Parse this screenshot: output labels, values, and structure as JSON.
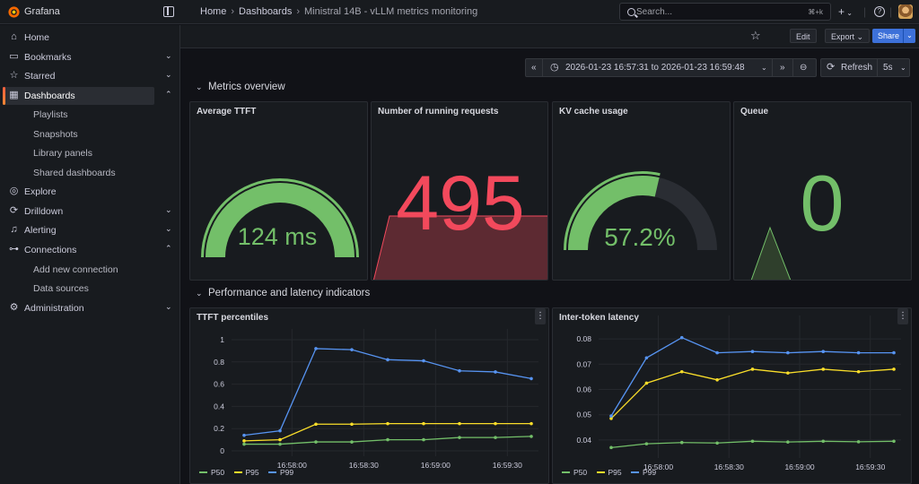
{
  "app": {
    "brand": "Grafana"
  },
  "breadcrumb": {
    "home": "Home",
    "dashboards": "Dashboards",
    "current": "Ministral 14B - vLLM metrics monitoring"
  },
  "search": {
    "placeholder": "Search...",
    "shortcut": "⌘+k"
  },
  "toolbar": {
    "edit_label": "Edit",
    "export_label": "Export",
    "share_label": "Share"
  },
  "sidebar": {
    "items": [
      {
        "label": "Home",
        "icon": "home-icon"
      },
      {
        "label": "Bookmarks",
        "icon": "bookmark-icon"
      },
      {
        "label": "Starred",
        "icon": "star-icon"
      },
      {
        "label": "Dashboards",
        "icon": "dashboards-icon",
        "active": true
      },
      {
        "label": "Playlists"
      },
      {
        "label": "Snapshots"
      },
      {
        "label": "Library panels"
      },
      {
        "label": "Shared dashboards"
      },
      {
        "label": "Explore",
        "icon": "compass-icon"
      },
      {
        "label": "Drilldown",
        "icon": "drilldown-icon"
      },
      {
        "label": "Alerting",
        "icon": "bell-icon"
      },
      {
        "label": "Connections",
        "icon": "connections-icon"
      },
      {
        "label": "Add new connection"
      },
      {
        "label": "Data sources"
      },
      {
        "label": "Administration",
        "icon": "gear-icon"
      }
    ]
  },
  "timepicker": {
    "range": "2026-01-23 16:57:31 to 2026-01-23 16:59:48",
    "refresh_label": "Refresh",
    "interval": "5s"
  },
  "rows": {
    "overview": "Metrics overview",
    "performance": "Performance and latency indicators"
  },
  "panels": {
    "ttft": {
      "title": "Average TTFT",
      "value": "124 ms",
      "gauge_fraction": 1.0,
      "color": "#73bf69"
    },
    "running": {
      "title": "Number of running requests",
      "value": "495",
      "color": "#f2495c"
    },
    "kv": {
      "title": "KV cache usage",
      "value": "57.2%",
      "gauge_fraction": 0.572,
      "color": "#73bf69"
    },
    "queue": {
      "title": "Queue",
      "value": "0",
      "color": "#73bf69"
    }
  },
  "colors": {
    "p50": "#73bf69",
    "p95": "#fade2a",
    "p99": "#5794f2",
    "accent": "#3d71d9"
  },
  "chart_data": [
    {
      "type": "line",
      "title": "TTFT percentiles",
      "x": [
        "16:57:40",
        "16:57:55",
        "16:58:10",
        "16:58:25",
        "16:58:40",
        "16:58:55",
        "16:59:10",
        "16:59:25",
        "16:59:40"
      ],
      "xticks": [
        "16:58:00",
        "16:58:30",
        "16:59:00",
        "16:59:30"
      ],
      "yticks": [
        "0",
        "0.2",
        "0.4",
        "0.6",
        "0.8",
        "1"
      ],
      "ylim": [
        0,
        1
      ],
      "series": [
        {
          "name": "P50",
          "values": [
            0.06,
            0.06,
            0.08,
            0.08,
            0.1,
            0.1,
            0.12,
            0.12,
            0.13
          ]
        },
        {
          "name": "P95",
          "values": [
            0.09,
            0.1,
            0.24,
            0.24,
            0.245,
            0.245,
            0.245,
            0.245,
            0.245
          ]
        },
        {
          "name": "P99",
          "values": [
            0.14,
            0.18,
            0.92,
            0.91,
            0.82,
            0.81,
            0.72,
            0.71,
            0.65
          ]
        }
      ]
    },
    {
      "type": "line",
      "title": "Inter-token latency",
      "x": [
        "16:57:40",
        "16:57:55",
        "16:58:10",
        "16:58:25",
        "16:58:40",
        "16:58:55",
        "16:59:10",
        "16:59:25",
        "16:59:40"
      ],
      "xticks": [
        "16:58:00",
        "16:58:30",
        "16:59:00",
        "16:59:30"
      ],
      "yticks": [
        "0.04",
        "0.05",
        "0.06",
        "0.07",
        "0.08"
      ],
      "ylim": [
        0.035,
        0.085
      ],
      "series": [
        {
          "name": "P50",
          "values": [
            0.037,
            0.0385,
            0.039,
            0.0388,
            0.0395,
            0.0392,
            0.0395,
            0.0393,
            0.0395
          ]
        },
        {
          "name": "P95",
          "values": [
            0.0485,
            0.0625,
            0.067,
            0.0638,
            0.068,
            0.0665,
            0.068,
            0.067,
            0.068
          ]
        },
        {
          "name": "P99",
          "values": [
            0.0495,
            0.0725,
            0.0805,
            0.0745,
            0.075,
            0.0745,
            0.075,
            0.0745,
            0.0745
          ]
        }
      ]
    }
  ]
}
